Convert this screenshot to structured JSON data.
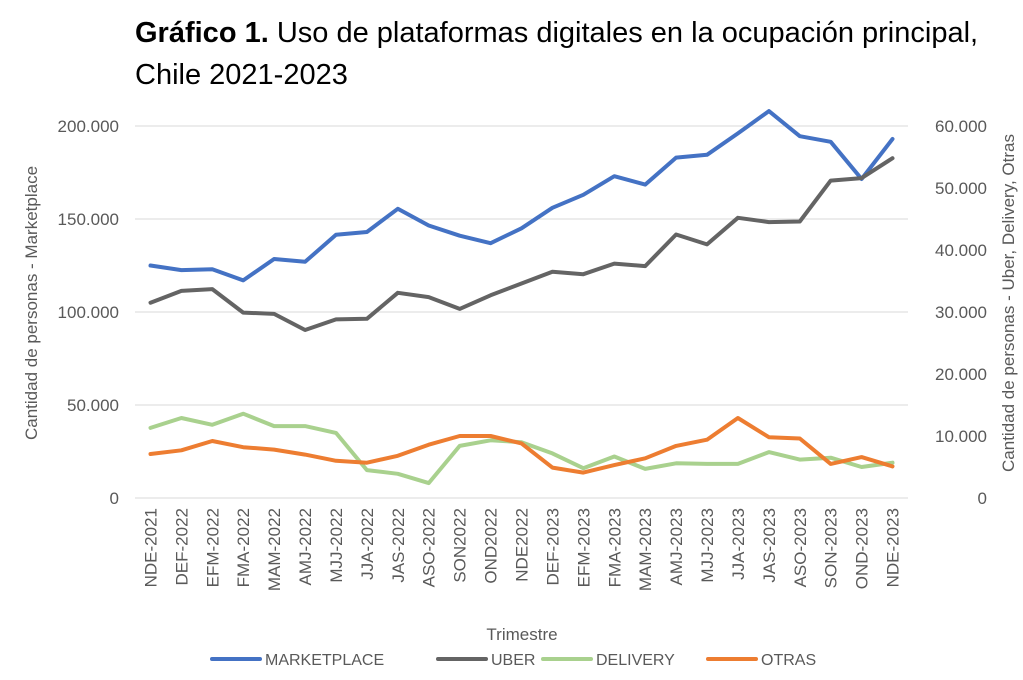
{
  "title": {
    "bold": "Gráfico 1.",
    "rest": " Uso de plataformas digitales en la ocupación principal, Chile 2021-2023"
  },
  "chart_data": {
    "type": "line",
    "title": "Gráfico 1. Uso de plataformas digitales en la ocupación principal, Chile 2021-2023",
    "xlabel": "Trimestre",
    "ylabel_left": "Cantidad de personas - Marketplace",
    "ylabel_right": "Cantidad de personas - Uber, Delivery, Otras",
    "ylim_left": [
      0,
      200000
    ],
    "ylim_right": [
      0,
      60000
    ],
    "yticks_left": [
      "0",
      "50.000",
      "100.000",
      "150.000",
      "200.000"
    ],
    "yticks_right": [
      "0",
      "10.000",
      "20.000",
      "30.000",
      "40.000",
      "50.000",
      "60.000"
    ],
    "grid": true,
    "legend_position": "bottom",
    "categories": [
      "NDE-2021",
      "DEF-2022",
      "EFM-2022",
      "FMA-2022",
      "MAM-2022",
      "AMJ-2022",
      "MJJ-2022",
      "JJA-2022",
      "JAS-2022",
      "ASO-2022",
      "SON2022",
      "OND2022",
      "NDE2022",
      "DEF-2023",
      "EFM-2023",
      "FMA-2023",
      "MAM-2023",
      "AMJ-2023",
      "MJJ-2023",
      "JJA-2023",
      "JAS-2023",
      "ASO-2023",
      "SON-2023",
      "OND-2023",
      "NDE-2023"
    ],
    "series": [
      {
        "name": "MARKETPLACE",
        "axis": "left",
        "color": "#4472C4",
        "values": [
          125000,
          122500,
          123000,
          117000,
          128500,
          127000,
          141500,
          143000,
          155500,
          146500,
          141000,
          137000,
          145000,
          156000,
          163000,
          173000,
          168500,
          183000,
          184500,
          196000,
          208000,
          194500,
          191500,
          171500,
          193000
        ]
      },
      {
        "name": "UBER",
        "axis": "right",
        "color": "#646464",
        "values": [
          31500,
          33400,
          33700,
          29900,
          29700,
          27100,
          28800,
          28900,
          33100,
          32400,
          30500,
          32700,
          34600,
          36500,
          36100,
          37800,
          37400,
          42500,
          40900,
          45200,
          44500,
          44600,
          51200,
          51600,
          54800
        ]
      },
      {
        "name": "DELIVERY",
        "axis": "right",
        "color": "#A9D18E",
        "values": [
          11300,
          12900,
          11800,
          13600,
          11600,
          11600,
          10500,
          4500,
          3900,
          2400,
          8400,
          9300,
          9000,
          7200,
          4800,
          6700,
          4700,
          5600,
          5500,
          5500,
          7400,
          6200,
          6500,
          5000,
          5700
        ]
      },
      {
        "name": "OTRAS",
        "axis": "right",
        "color": "#ED7D31",
        "values": [
          7100,
          7700,
          9200,
          8200,
          7800,
          7000,
          6000,
          5700,
          6800,
          8600,
          10000,
          10000,
          8800,
          4900,
          4100,
          5300,
          6400,
          8400,
          9400,
          12900,
          9800,
          9600,
          5500,
          6600,
          5100
        ]
      }
    ]
  }
}
